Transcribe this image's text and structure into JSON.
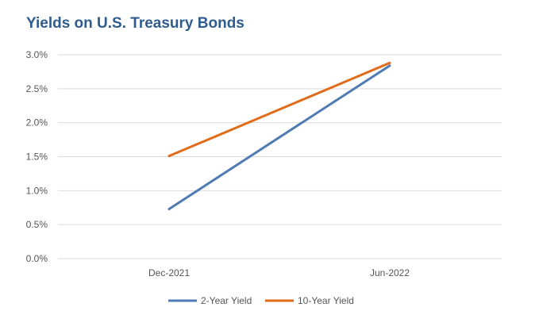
{
  "chart_data": {
    "type": "line",
    "title": "Yields on U.S. Treasury Bonds",
    "xlabel": "",
    "ylabel": "",
    "categories": [
      "Dec-2021",
      "Jun-2022"
    ],
    "series": [
      {
        "name": "2-Year Yield",
        "values": [
          0.73,
          2.84
        ],
        "color": "#4f7bb3"
      },
      {
        "name": "10-Year Yield",
        "values": [
          1.51,
          2.88
        ],
        "color": "#e06c1a"
      }
    ],
    "ylim": [
      0,
      3.0
    ],
    "yticks": [
      "0.0%",
      "0.5%",
      "1.0%",
      "1.5%",
      "2.0%",
      "2.5%",
      "3.0%"
    ],
    "ytick_values": [
      0,
      0.5,
      1.0,
      1.5,
      2.0,
      2.5,
      3.0
    ],
    "grid": true,
    "legend": "bottom",
    "colors": {
      "grid": "#d9d9d9",
      "title": "#2f5c8f",
      "text": "#555555"
    }
  }
}
